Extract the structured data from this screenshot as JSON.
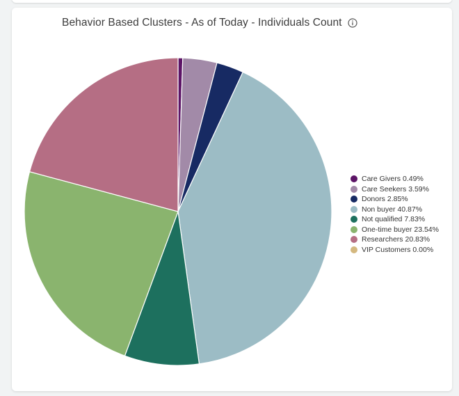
{
  "chart_data": {
    "type": "pie",
    "title": "Behavior Based Clusters - As of Today - Individuals Count",
    "legend_position": "right",
    "slices": [
      {
        "label": "Care Givers",
        "value": 0.49,
        "value_label": "0.49%",
        "color": "#5c1466"
      },
      {
        "label": "Care Seekers",
        "value": 3.59,
        "value_label": "3.59%",
        "color": "#a28aa8"
      },
      {
        "label": "Donors",
        "value": 2.85,
        "value_label": "2.85%",
        "color": "#172a63"
      },
      {
        "label": "Non buyer",
        "value": 40.87,
        "value_label": "40.87%",
        "color": "#9cbcc5"
      },
      {
        "label": "Not qualified",
        "value": 7.83,
        "value_label": "7.83%",
        "color": "#1d705e"
      },
      {
        "label": "One-time buyer",
        "value": 23.54,
        "value_label": "23.54%",
        "color": "#8ab46e"
      },
      {
        "label": "Researchers",
        "value": 20.83,
        "value_label": "20.83%",
        "color": "#b56e84"
      },
      {
        "label": "VIP Customers",
        "value": 0.0,
        "value_label": "0.00%",
        "color": "#d4b87f"
      }
    ]
  },
  "icons": {
    "info": "info-icon"
  }
}
